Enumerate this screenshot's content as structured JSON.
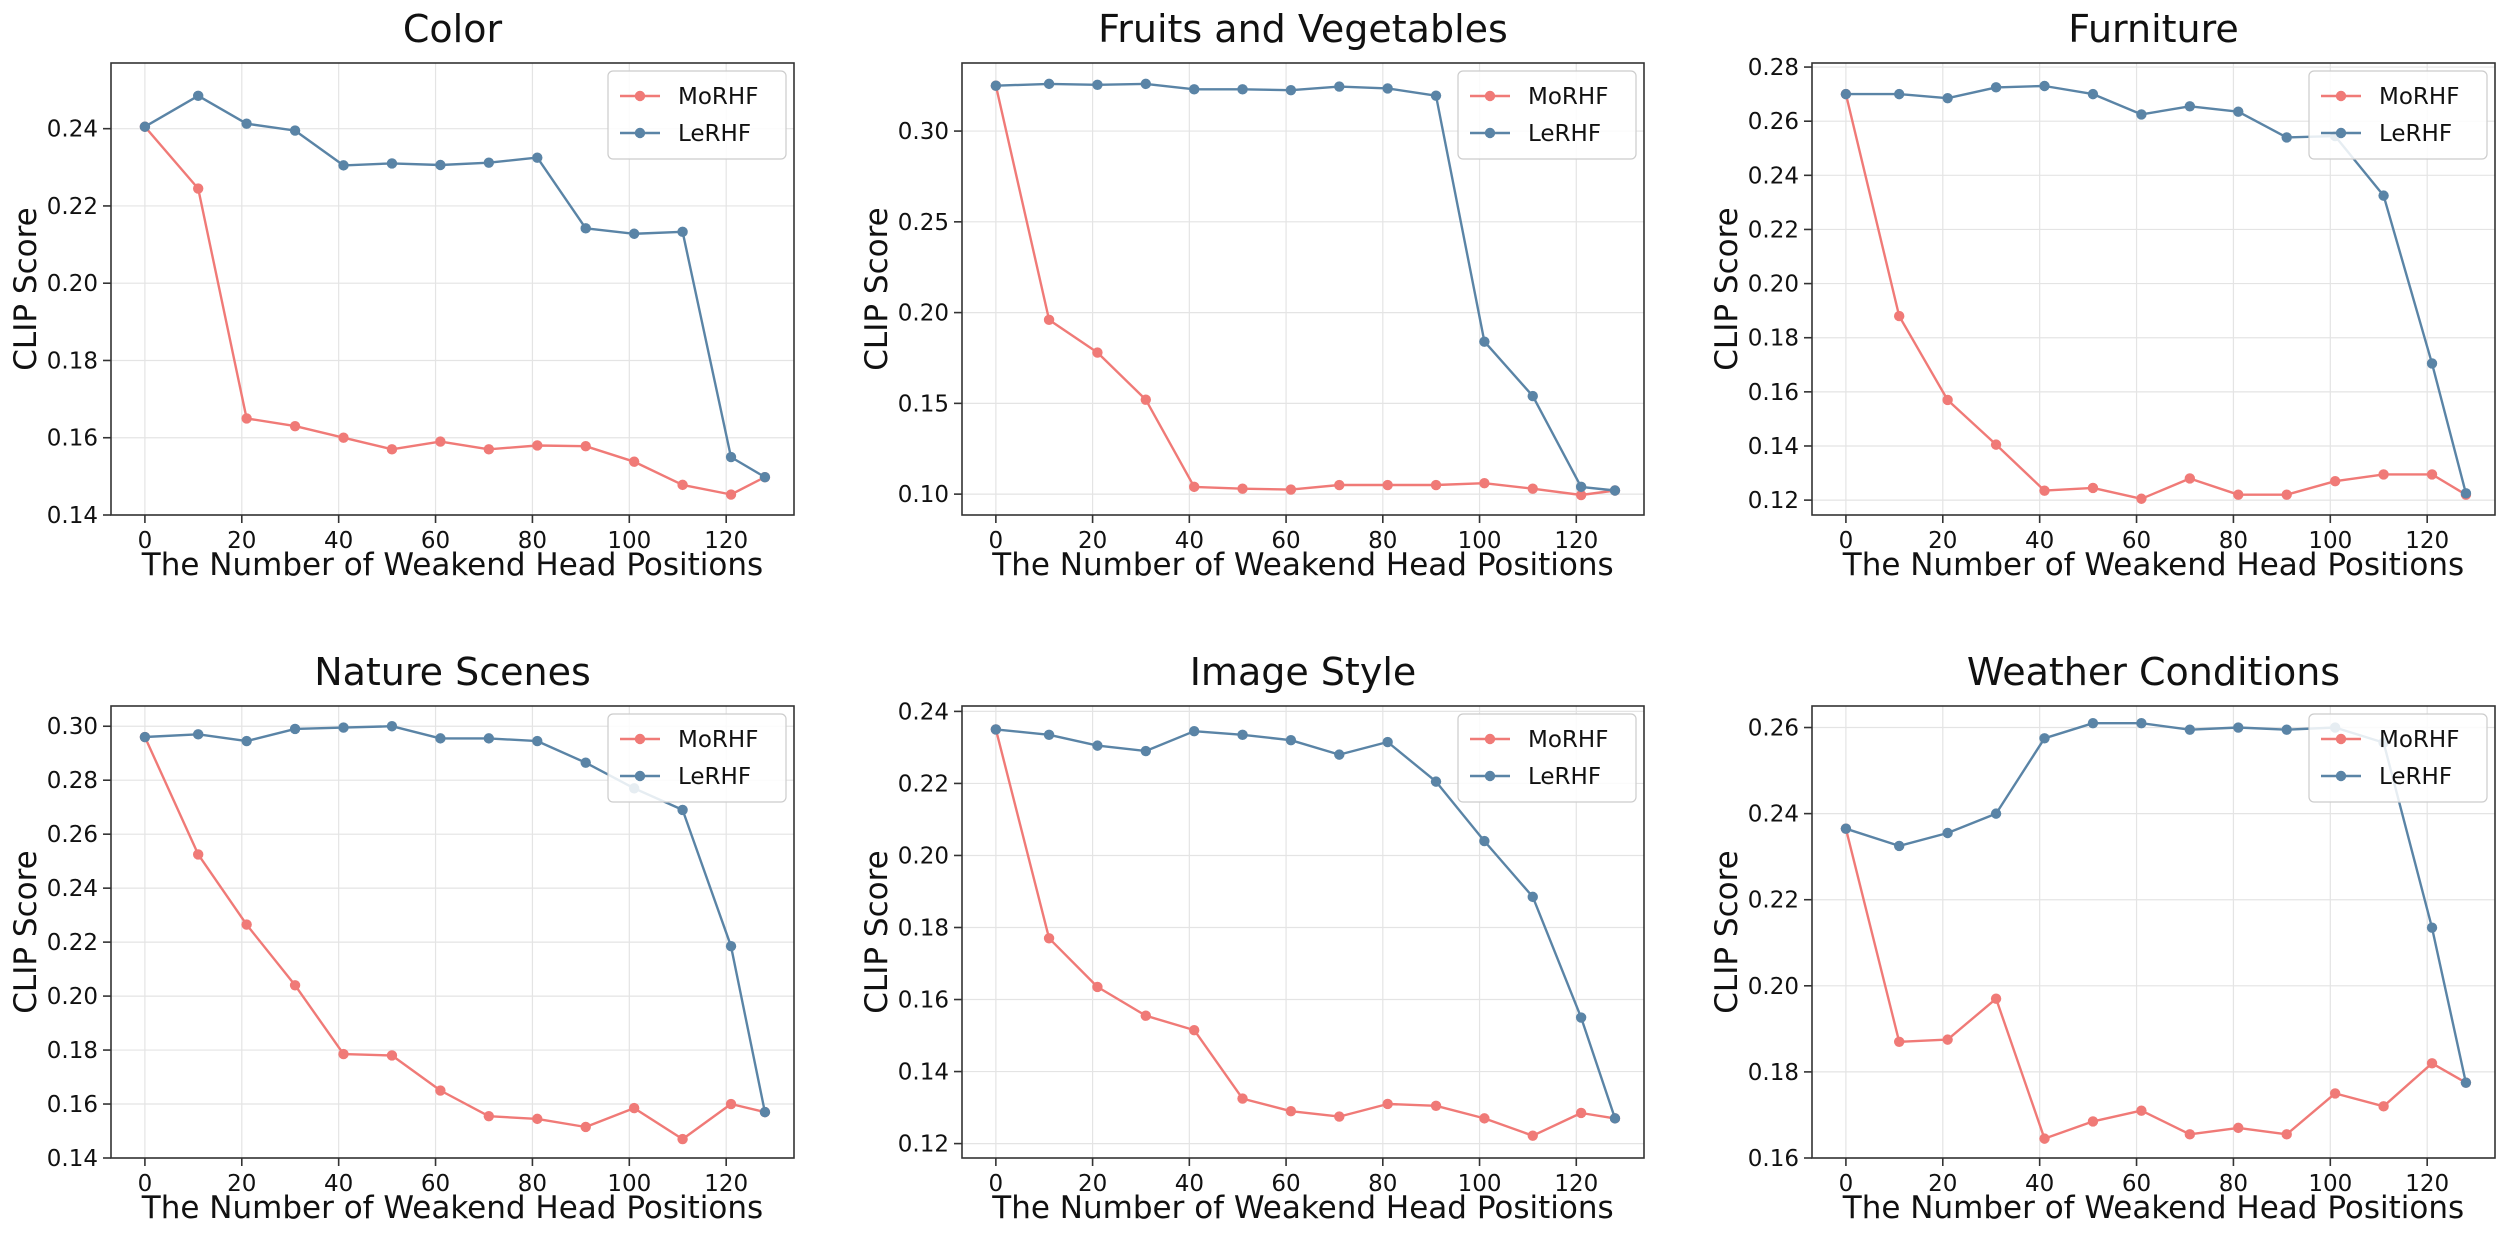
{
  "chart_data": [
    {
      "type": "line",
      "title": "Color",
      "xlabel": "The Number of Weakend Head Positions",
      "ylabel": "CLIP Score",
      "xlim": [
        -7,
        134
      ],
      "ylim": [
        0.14,
        0.257
      ],
      "xticks": [
        0,
        20,
        40,
        60,
        80,
        100,
        120
      ],
      "xtick_labels": [
        "0",
        "20",
        "40",
        "60",
        "80",
        "100",
        "120"
      ],
      "yticks": [
        0.14,
        0.16,
        0.18,
        0.2,
        0.22,
        0.24
      ],
      "ytick_labels": [
        "0.14",
        "0.16",
        "0.18",
        "0.20",
        "0.22",
        "0.24"
      ],
      "grid": true,
      "legend": "top-right",
      "x": [
        0,
        11,
        21,
        31,
        41,
        51,
        61,
        71,
        81,
        91,
        101,
        111,
        121,
        128
      ],
      "series": [
        {
          "name": "MoRHF",
          "color": "#f07a77",
          "values": [
            0.2405,
            0.2245,
            0.165,
            0.163,
            0.16,
            0.157,
            0.159,
            0.157,
            0.158,
            0.1578,
            0.1538,
            0.1478,
            0.1453,
            0.1498
          ]
        },
        {
          "name": "LeRHF",
          "color": "#5a84a6",
          "values": [
            0.2405,
            0.2485,
            0.2413,
            0.2395,
            0.2305,
            0.231,
            0.2306,
            0.2312,
            0.2325,
            0.2142,
            0.2128,
            0.2133,
            0.155,
            0.1498
          ]
        }
      ]
    },
    {
      "type": "line",
      "title": "Fruits and Vegetables",
      "xlabel": "The Number of Weakend Head Positions",
      "ylabel": "CLIP Score",
      "xlim": [
        -7,
        134
      ],
      "ylim": [
        0.0885,
        0.3375
      ],
      "xticks": [
        0,
        20,
        40,
        60,
        80,
        100,
        120
      ],
      "xtick_labels": [
        "0",
        "20",
        "40",
        "60",
        "80",
        "100",
        "120"
      ],
      "yticks": [
        0.1,
        0.15,
        0.2,
        0.25,
        0.3
      ],
      "ytick_labels": [
        "0.10",
        "0.15",
        "0.20",
        "0.25",
        "0.30"
      ],
      "grid": true,
      "legend": "top-right",
      "x": [
        0,
        11,
        21,
        31,
        41,
        51,
        61,
        71,
        81,
        91,
        101,
        111,
        121,
        128
      ],
      "series": [
        {
          "name": "MoRHF",
          "color": "#f07a77",
          "values": [
            0.325,
            0.196,
            0.178,
            0.152,
            0.104,
            0.103,
            0.1025,
            0.105,
            0.105,
            0.105,
            0.106,
            0.103,
            0.0995,
            0.102
          ]
        },
        {
          "name": "LeRHF",
          "color": "#5a84a6",
          "values": [
            0.325,
            0.326,
            0.3255,
            0.326,
            0.323,
            0.323,
            0.3225,
            0.3245,
            0.3235,
            0.3195,
            0.184,
            0.154,
            0.104,
            0.102
          ]
        }
      ]
    },
    {
      "type": "line",
      "title": "Furniture",
      "xlabel": "The Number of Weakend Head Positions",
      "ylabel": "CLIP Score",
      "xlim": [
        -7,
        134
      ],
      "ylim": [
        0.1145,
        0.2815
      ],
      "xticks": [
        0,
        20,
        40,
        60,
        80,
        100,
        120
      ],
      "xtick_labels": [
        "0",
        "20",
        "40",
        "60",
        "80",
        "100",
        "120"
      ],
      "yticks": [
        0.12,
        0.14,
        0.16,
        0.18,
        0.2,
        0.22,
        0.24,
        0.26,
        0.28
      ],
      "ytick_labels": [
        "0.12",
        "0.14",
        "0.16",
        "0.18",
        "0.20",
        "0.22",
        "0.24",
        "0.26",
        "0.28"
      ],
      "grid": true,
      "legend": "top-right",
      "x": [
        0,
        11,
        21,
        31,
        41,
        51,
        61,
        71,
        81,
        91,
        101,
        111,
        121,
        128
      ],
      "series": [
        {
          "name": "MoRHF",
          "color": "#f07a77",
          "values": [
            0.27,
            0.188,
            0.157,
            0.1405,
            0.1235,
            0.1245,
            0.1205,
            0.128,
            0.122,
            0.122,
            0.127,
            0.1295,
            0.1295,
            0.122
          ]
        },
        {
          "name": "LeRHF",
          "color": "#5a84a6",
          "values": [
            0.27,
            0.27,
            0.2685,
            0.2725,
            0.273,
            0.27,
            0.2625,
            0.2655,
            0.2635,
            0.254,
            0.2545,
            0.2325,
            0.1705,
            0.1225
          ]
        }
      ]
    },
    {
      "type": "line",
      "title": "Nature Scenes",
      "xlabel": "The Number of Weakend Head Positions",
      "ylabel": "CLIP Score",
      "xlim": [
        -7,
        134
      ],
      "ylim": [
        0.14,
        0.3075
      ],
      "xticks": [
        0,
        20,
        40,
        60,
        80,
        100,
        120
      ],
      "xtick_labels": [
        "0",
        "20",
        "40",
        "60",
        "80",
        "100",
        "120"
      ],
      "yticks": [
        0.14,
        0.16,
        0.18,
        0.2,
        0.22,
        0.24,
        0.26,
        0.28,
        0.3
      ],
      "ytick_labels": [
        "0.14",
        "0.16",
        "0.18",
        "0.20",
        "0.22",
        "0.24",
        "0.26",
        "0.28",
        "0.30"
      ],
      "grid": true,
      "legend": "top-right",
      "x": [
        0,
        11,
        21,
        31,
        41,
        51,
        61,
        71,
        81,
        91,
        101,
        111,
        121,
        128
      ],
      "series": [
        {
          "name": "MoRHF",
          "color": "#f07a77",
          "values": [
            0.296,
            0.2525,
            0.2265,
            0.204,
            0.1785,
            0.178,
            0.165,
            0.1555,
            0.1545,
            0.1515,
            0.1585,
            0.147,
            0.16,
            0.157
          ]
        },
        {
          "name": "LeRHF",
          "color": "#5a84a6",
          "values": [
            0.296,
            0.297,
            0.2945,
            0.299,
            0.2995,
            0.3,
            0.2955,
            0.2955,
            0.2945,
            0.2865,
            0.277,
            0.269,
            0.2185,
            0.157
          ]
        }
      ]
    },
    {
      "type": "line",
      "title": "Image Style",
      "xlabel": "The Number of Weakend Head Positions",
      "ylabel": "CLIP Score",
      "xlim": [
        -7,
        134
      ],
      "ylim": [
        0.116,
        0.2415
      ],
      "xticks": [
        0,
        20,
        40,
        60,
        80,
        100,
        120
      ],
      "xtick_labels": [
        "0",
        "20",
        "40",
        "60",
        "80",
        "100",
        "120"
      ],
      "yticks": [
        0.12,
        0.14,
        0.16,
        0.18,
        0.2,
        0.22,
        0.24
      ],
      "ytick_labels": [
        "0.12",
        "0.14",
        "0.16",
        "0.18",
        "0.20",
        "0.22",
        "0.24"
      ],
      "grid": true,
      "legend": "top-right",
      "x": [
        0,
        11,
        21,
        31,
        41,
        51,
        61,
        71,
        81,
        91,
        101,
        111,
        121,
        128
      ],
      "series": [
        {
          "name": "MoRHF",
          "color": "#f07a77",
          "values": [
            0.235,
            0.177,
            0.1635,
            0.1555,
            0.1515,
            0.1325,
            0.129,
            0.1275,
            0.131,
            0.1305,
            0.127,
            0.1222,
            0.1285,
            0.127
          ]
        },
        {
          "name": "LeRHF",
          "color": "#5a84a6",
          "values": [
            0.235,
            0.2335,
            0.2305,
            0.229,
            0.2345,
            0.2335,
            0.232,
            0.228,
            0.2315,
            0.2205,
            0.204,
            0.1885,
            0.155,
            0.127
          ]
        }
      ]
    },
    {
      "type": "line",
      "title": "Weather Conditions",
      "xlabel": "The Number of Weakend Head Positions",
      "ylabel": "CLIP Score",
      "xlim": [
        -7,
        134
      ],
      "ylim": [
        0.16,
        0.265
      ],
      "xticks": [
        0,
        20,
        40,
        60,
        80,
        100,
        120
      ],
      "xtick_labels": [
        "0",
        "20",
        "40",
        "60",
        "80",
        "100",
        "120"
      ],
      "yticks": [
        0.16,
        0.18,
        0.2,
        0.22,
        0.24,
        0.26
      ],
      "ytick_labels": [
        "0.16",
        "0.18",
        "0.20",
        "0.22",
        "0.24",
        "0.26"
      ],
      "grid": true,
      "legend": "top-right",
      "x": [
        0,
        11,
        21,
        31,
        41,
        51,
        61,
        71,
        81,
        91,
        101,
        111,
        121,
        128
      ],
      "series": [
        {
          "name": "MoRHF",
          "color": "#f07a77",
          "values": [
            0.2365,
            0.187,
            0.1875,
            0.197,
            0.1645,
            0.1685,
            0.171,
            0.1655,
            0.167,
            0.1655,
            0.175,
            0.172,
            0.182,
            0.1775
          ]
        },
        {
          "name": "LeRHF",
          "color": "#5a84a6",
          "values": [
            0.2365,
            0.2325,
            0.2355,
            0.24,
            0.2575,
            0.261,
            0.261,
            0.2595,
            0.26,
            0.2595,
            0.26,
            0.2565,
            0.2135,
            0.1775
          ]
        }
      ]
    }
  ]
}
